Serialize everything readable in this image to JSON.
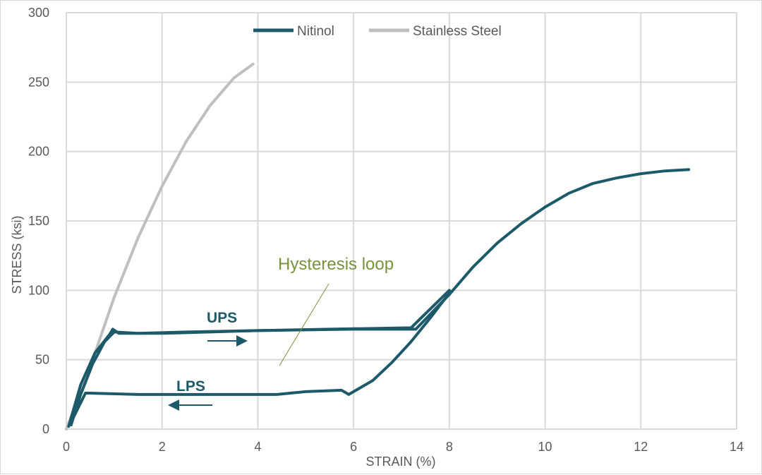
{
  "chart_data": {
    "type": "line",
    "title": "",
    "xlabel": "STRAIN (%)",
    "ylabel": "STRESS (ksi)",
    "xlim": [
      0,
      14
    ],
    "ylim": [
      0,
      300
    ],
    "xticks": [
      0,
      2,
      4,
      6,
      8,
      10,
      12,
      14
    ],
    "yticks": [
      0,
      50,
      100,
      150,
      200,
      250,
      300
    ],
    "grid": true,
    "legend_position": "top-center",
    "series": [
      {
        "name": "Nitinol",
        "color": "#1d5a69",
        "segments": [
          [
            [
              0.1,
              3
            ],
            [
              0.3,
              25
            ],
            [
              0.55,
              47
            ],
            [
              0.8,
              63
            ],
            [
              1.0,
              70
            ],
            [
              1.5,
              69
            ],
            [
              2.5,
              70
            ],
            [
              4,
              71
            ],
            [
              5.5,
              72
            ],
            [
              7.2,
              73
            ],
            [
              8.0,
              100
            ]
          ],
          [
            [
              8.0,
              98
            ],
            [
              7.6,
              80
            ],
            [
              7.2,
              63
            ],
            [
              6.8,
              48
            ],
            [
              6.4,
              35
            ],
            [
              6.0,
              27
            ],
            [
              5.9,
              25
            ],
            [
              5.75,
              28
            ],
            [
              5,
              27
            ],
            [
              4.4,
              25
            ],
            [
              3,
              25
            ],
            [
              1.5,
              25
            ],
            [
              0.4,
              26
            ],
            [
              0.1,
              5
            ]
          ],
          [
            [
              0.05,
              2
            ],
            [
              0.3,
              32
            ],
            [
              0.6,
              55
            ],
            [
              0.9,
              68
            ],
            [
              0.97,
              72
            ],
            [
              1.1,
              69
            ],
            [
              2,
              69
            ],
            [
              4,
              71
            ],
            [
              6,
              72
            ],
            [
              7.3,
              72
            ],
            [
              8,
              97
            ],
            [
              8.5,
              117
            ],
            [
              9,
              134
            ],
            [
              9.5,
              148
            ],
            [
              10,
              160
            ],
            [
              10.5,
              170
            ],
            [
              11,
              177
            ],
            [
              11.5,
              181
            ],
            [
              12,
              184
            ],
            [
              12.5,
              186
            ],
            [
              13,
              187
            ]
          ]
        ]
      },
      {
        "name": "Stainless Steel",
        "color": "#bfbfbf",
        "segments": [
          [
            [
              0,
              0
            ],
            [
              0.5,
              45
            ],
            [
              1,
              95
            ],
            [
              1.5,
              138
            ],
            [
              2,
              175
            ],
            [
              2.5,
              207
            ],
            [
              3,
              233
            ],
            [
              3.5,
              253
            ],
            [
              3.9,
              263
            ]
          ]
        ]
      }
    ],
    "annotations": {
      "hysteresis": "Hysteresis loop",
      "hysteresis_color": "#77933c",
      "ups": "UPS",
      "lps": "LPS"
    }
  }
}
